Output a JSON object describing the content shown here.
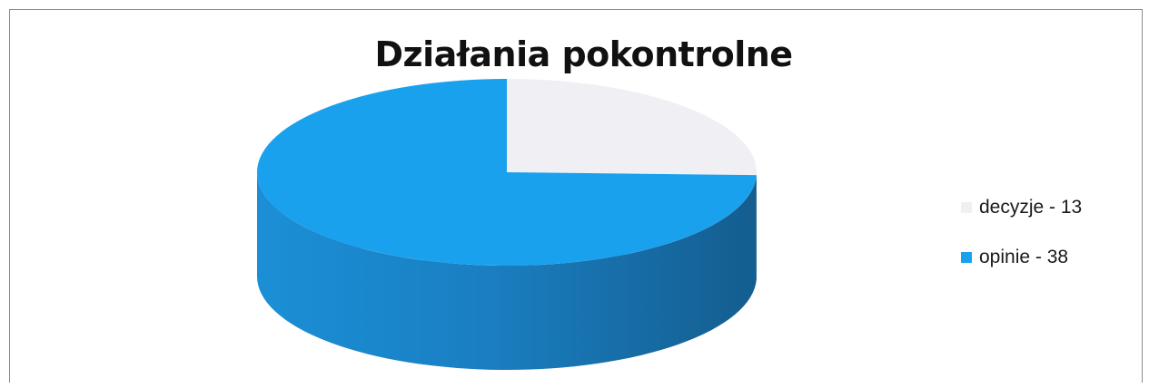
{
  "chart_data": {
    "type": "pie",
    "title": "Działania pokontrolne",
    "slices": [
      {
        "label": "decyzje - 13",
        "name": "decyzje",
        "value": 13,
        "color": "#f0f0f4"
      },
      {
        "label": "opinie - 38",
        "name": "opinie",
        "value": 38,
        "color": "#1aa1ee"
      }
    ],
    "legend_position": "right",
    "style": "3d"
  }
}
